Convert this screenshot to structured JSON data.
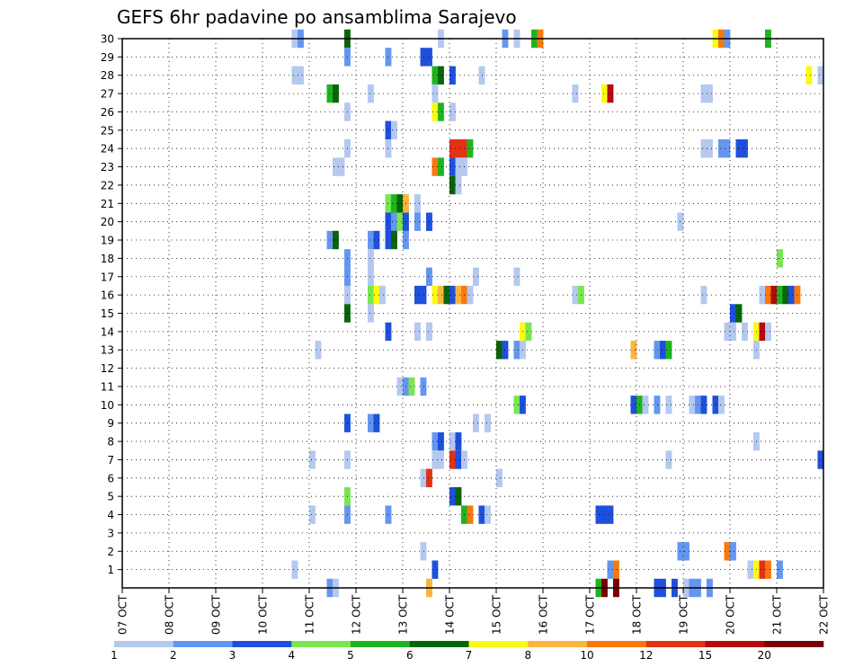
{
  "chart_data": {
    "type": "heatmap",
    "title": "GEFS 6hr padavine po ansamblima Sarajevo",
    "xlabel": "",
    "ylabel": "",
    "x_ticks": [
      "07 OCT",
      "08 OCT",
      "09 OCT",
      "10 OCT",
      "11 OCT",
      "12 OCT",
      "13 OCT",
      "14 OCT",
      "15 OCT",
      "16 OCT",
      "17 OCT",
      "18 OCT",
      "19 OCT",
      "20 OCT",
      "21 OCT",
      "22 OCT"
    ],
    "y_ticks": [
      1,
      2,
      3,
      4,
      5,
      6,
      7,
      8,
      9,
      10,
      11,
      12,
      13,
      14,
      15,
      16,
      17,
      18,
      19,
      20,
      21,
      22,
      23,
      24,
      25,
      26,
      27,
      28,
      29,
      30
    ],
    "xlim_steps": [
      0,
      60
    ],
    "ylim": [
      0,
      30
    ],
    "grid": true,
    "colorbar": {
      "labels": [
        "1",
        "2",
        "3",
        "4",
        "5",
        "6",
        "7",
        "8",
        "10",
        "12",
        "15",
        "20"
      ],
      "colors": [
        "#b4c8f0",
        "#6496f0",
        "#1e50dc",
        "#78e650",
        "#1eb41e",
        "#0a640a",
        "#fafa14",
        "#fab43c",
        "#fa780a",
        "#e13214",
        "#b40a0a",
        "#780000"
      ]
    },
    "cells": [
      {
        "member": 30,
        "steps": [
          [
            14.5,
            0
          ],
          [
            15.0,
            1
          ],
          [
            19.0,
            5
          ],
          [
            27.0,
            0
          ],
          [
            32.5,
            1
          ],
          [
            33.5,
            0
          ],
          [
            35.0,
            4
          ],
          [
            35.5,
            8
          ],
          [
            50.5,
            6
          ],
          [
            51.0,
            8
          ],
          [
            51.5,
            1
          ],
          [
            55.0,
            4
          ]
        ]
      },
      {
        "member": 29,
        "steps": [
          [
            19.0,
            1
          ],
          [
            22.5,
            1
          ],
          [
            25.5,
            2
          ],
          [
            26.0,
            2
          ]
        ]
      },
      {
        "member": 28,
        "steps": [
          [
            14.5,
            0
          ],
          [
            15.0,
            0
          ],
          [
            26.5,
            4
          ],
          [
            27.0,
            5
          ],
          [
            28.0,
            2
          ],
          [
            30.5,
            0
          ],
          [
            58.5,
            6
          ],
          [
            59.5,
            0
          ]
        ]
      },
      {
        "member": 27,
        "steps": [
          [
            17.5,
            4
          ],
          [
            18.0,
            5
          ],
          [
            21.0,
            0
          ],
          [
            26.5,
            0
          ],
          [
            38.5,
            0
          ],
          [
            41.0,
            6
          ],
          [
            41.5,
            10
          ],
          [
            49.5,
            0
          ],
          [
            50.0,
            0
          ]
        ]
      },
      {
        "member": 26,
        "steps": [
          [
            19.0,
            0
          ],
          [
            26.5,
            6
          ],
          [
            27.0,
            4
          ],
          [
            28.0,
            0
          ]
        ]
      },
      {
        "member": 25,
        "steps": [
          [
            22.5,
            2
          ],
          [
            23.0,
            0
          ]
        ]
      },
      {
        "member": 24,
        "steps": [
          [
            19.0,
            0
          ],
          [
            22.5,
            0
          ],
          [
            28.0,
            9
          ],
          [
            28.5,
            9
          ],
          [
            29.0,
            9
          ],
          [
            29.5,
            4
          ],
          [
            49.5,
            0
          ],
          [
            50.0,
            0
          ],
          [
            51.0,
            1
          ],
          [
            51.5,
            1
          ],
          [
            52.5,
            2
          ],
          [
            53.0,
            2
          ]
        ]
      },
      {
        "member": 23,
        "steps": [
          [
            18.0,
            0
          ],
          [
            18.5,
            0
          ],
          [
            26.5,
            8
          ],
          [
            27.0,
            4
          ],
          [
            28.0,
            2
          ],
          [
            28.5,
            0
          ],
          [
            29.0,
            0
          ]
        ]
      },
      {
        "member": 22,
        "steps": [
          [
            28.0,
            5
          ],
          [
            28.5,
            0
          ]
        ]
      },
      {
        "member": 21,
        "steps": [
          [
            22.5,
            3
          ],
          [
            23.0,
            4
          ],
          [
            23.5,
            5
          ],
          [
            24.0,
            7
          ],
          [
            25.0,
            0
          ]
        ]
      },
      {
        "member": 20,
        "steps": [
          [
            22.5,
            2
          ],
          [
            23.0,
            1
          ],
          [
            23.5,
            3
          ],
          [
            24.0,
            2
          ],
          [
            25.0,
            1
          ],
          [
            26.0,
            2
          ],
          [
            47.5,
            0
          ]
        ]
      },
      {
        "member": 19,
        "steps": [
          [
            17.5,
            1
          ],
          [
            18.0,
            5
          ],
          [
            21.0,
            1
          ],
          [
            21.5,
            2
          ],
          [
            22.5,
            2
          ],
          [
            23.0,
            5
          ],
          [
            24.0,
            1
          ]
        ]
      },
      {
        "member": 18,
        "steps": [
          [
            19.0,
            1
          ],
          [
            21.0,
            0
          ],
          [
            56.0,
            3
          ]
        ]
      },
      {
        "member": 17,
        "steps": [
          [
            19.0,
            1
          ],
          [
            21.0,
            0
          ],
          [
            26.0,
            1
          ],
          [
            30.0,
            0
          ],
          [
            33.5,
            0
          ]
        ]
      },
      {
        "member": 16,
        "steps": [
          [
            19.0,
            0
          ],
          [
            21.0,
            3
          ],
          [
            21.5,
            6
          ],
          [
            22.0,
            0
          ],
          [
            25.0,
            2
          ],
          [
            25.5,
            2
          ],
          [
            26.5,
            6
          ],
          [
            27.0,
            7
          ],
          [
            27.5,
            5
          ],
          [
            28.0,
            2
          ],
          [
            28.5,
            7
          ],
          [
            29.0,
            8
          ],
          [
            29.5,
            0
          ],
          [
            38.5,
            0
          ],
          [
            39.0,
            3
          ],
          [
            49.5,
            0
          ],
          [
            54.5,
            0
          ],
          [
            55.0,
            8
          ],
          [
            55.5,
            10
          ],
          [
            56.0,
            4
          ],
          [
            56.5,
            5
          ],
          [
            57.0,
            2
          ],
          [
            57.5,
            8
          ]
        ]
      },
      {
        "member": 15,
        "steps": [
          [
            19.0,
            5
          ],
          [
            21.0,
            0
          ],
          [
            52.0,
            2
          ],
          [
            52.5,
            5
          ]
        ]
      },
      {
        "member": 14,
        "steps": [
          [
            22.5,
            2
          ],
          [
            25.0,
            0
          ],
          [
            26.0,
            0
          ],
          [
            34.0,
            6
          ],
          [
            34.5,
            3
          ],
          [
            51.5,
            0
          ],
          [
            52.0,
            0
          ],
          [
            53.0,
            0
          ],
          [
            54.0,
            6
          ],
          [
            54.5,
            10
          ],
          [
            55.0,
            0
          ]
        ]
      },
      {
        "member": 13,
        "steps": [
          [
            16.5,
            0
          ],
          [
            32.0,
            5
          ],
          [
            32.5,
            2
          ],
          [
            33.5,
            1
          ],
          [
            34.0,
            0
          ],
          [
            43.5,
            7
          ],
          [
            45.5,
            1
          ],
          [
            46.0,
            2
          ],
          [
            46.5,
            4
          ],
          [
            54.0,
            0
          ]
        ]
      },
      {
        "member": 11,
        "steps": [
          [
            23.5,
            0
          ],
          [
            24.0,
            1
          ],
          [
            24.5,
            3
          ],
          [
            25.5,
            1
          ]
        ]
      },
      {
        "member": 10,
        "steps": [
          [
            33.5,
            3
          ],
          [
            34.0,
            2
          ],
          [
            43.5,
            2
          ],
          [
            44.0,
            4
          ],
          [
            44.5,
            0
          ],
          [
            45.5,
            1
          ],
          [
            46.5,
            0
          ],
          [
            48.5,
            0
          ],
          [
            49.0,
            1
          ],
          [
            49.5,
            2
          ],
          [
            50.5,
            2
          ],
          [
            51.0,
            0
          ]
        ]
      },
      {
        "member": 9,
        "steps": [
          [
            19.0,
            2
          ],
          [
            21.0,
            1
          ],
          [
            21.5,
            2
          ],
          [
            30.0,
            0
          ],
          [
            31.0,
            0
          ]
        ]
      },
      {
        "member": 8,
        "steps": [
          [
            26.5,
            1
          ],
          [
            27.0,
            2
          ],
          [
            28.0,
            0
          ],
          [
            28.5,
            2
          ],
          [
            54.0,
            0
          ]
        ]
      },
      {
        "member": 7,
        "steps": [
          [
            16.0,
            0
          ],
          [
            19.0,
            0
          ],
          [
            26.5,
            0
          ],
          [
            27.0,
            0
          ],
          [
            28.0,
            9
          ],
          [
            28.5,
            2
          ],
          [
            29.0,
            0
          ],
          [
            46.5,
            0
          ],
          [
            59.5,
            2
          ]
        ]
      },
      {
        "member": 6,
        "steps": [
          [
            25.5,
            0
          ],
          [
            26.0,
            9
          ],
          [
            32.0,
            0
          ]
        ]
      },
      {
        "member": 5,
        "steps": [
          [
            19.0,
            3
          ],
          [
            28.0,
            2
          ],
          [
            28.5,
            5
          ]
        ]
      },
      {
        "member": 4,
        "steps": [
          [
            16.0,
            0
          ],
          [
            19.0,
            1
          ],
          [
            22.5,
            1
          ],
          [
            29.0,
            4
          ],
          [
            29.5,
            8
          ],
          [
            30.5,
            2
          ],
          [
            31.0,
            0
          ],
          [
            40.5,
            2
          ],
          [
            41.0,
            2
          ],
          [
            41.5,
            2
          ]
        ]
      },
      {
        "member": 2,
        "steps": [
          [
            25.5,
            0
          ],
          [
            47.5,
            1
          ],
          [
            48.0,
            1
          ],
          [
            51.5,
            8
          ],
          [
            52.0,
            1
          ]
        ]
      },
      {
        "member": 1,
        "steps": [
          [
            14.5,
            0
          ],
          [
            26.5,
            2
          ],
          [
            41.5,
            1
          ],
          [
            42.0,
            8
          ],
          [
            53.5,
            0
          ],
          [
            54.0,
            6
          ],
          [
            54.5,
            9
          ],
          [
            55.0,
            8
          ],
          [
            56.0,
            1
          ]
        ]
      },
      {
        "member": 0,
        "steps": [
          [
            17.5,
            1
          ],
          [
            18.0,
            0
          ],
          [
            26.0,
            7
          ],
          [
            40.5,
            4
          ],
          [
            41.0,
            11
          ],
          [
            42.0,
            11
          ],
          [
            45.5,
            2
          ],
          [
            46.0,
            2
          ],
          [
            47.0,
            2
          ],
          [
            48.0,
            0
          ],
          [
            48.5,
            1
          ],
          [
            49.0,
            1
          ],
          [
            50.0,
            1
          ]
        ]
      }
    ]
  }
}
